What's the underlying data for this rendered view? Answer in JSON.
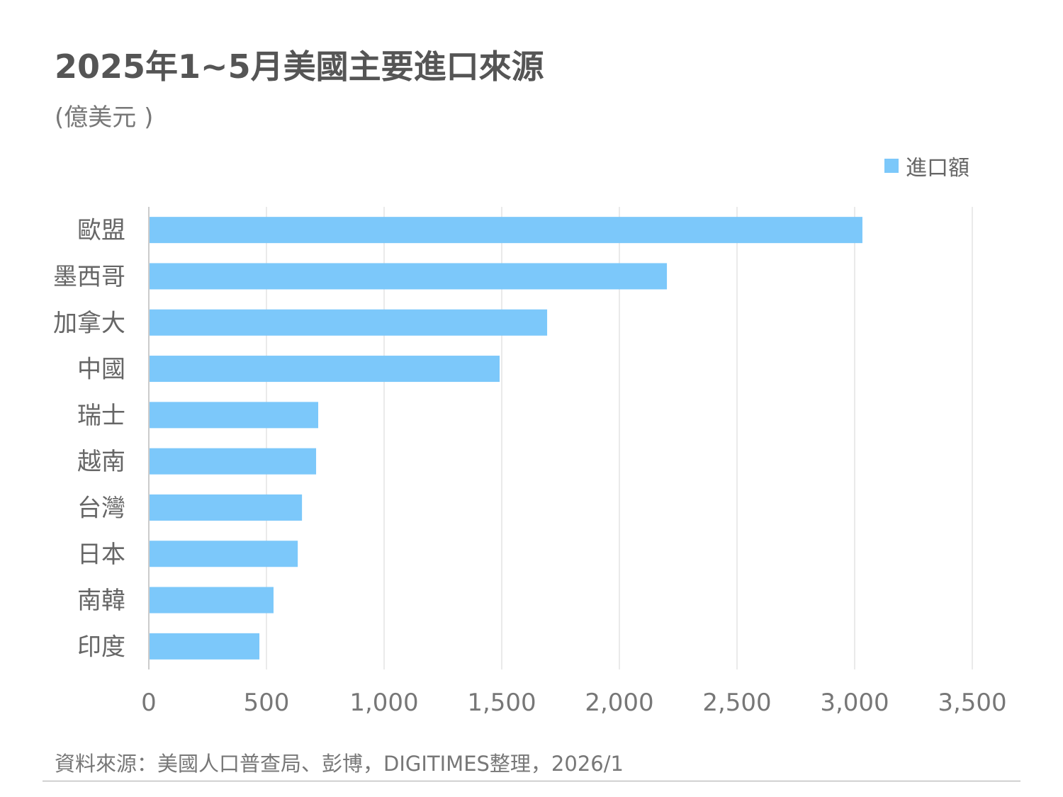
{
  "chart_data": {
    "type": "bar",
    "orientation": "horizontal",
    "title": "2025年1~5月美國主要進口來源",
    "subtitle": "(億美元 )",
    "categories": [
      "歐盟",
      "墨西哥",
      "加拿大",
      "中國",
      "瑞士",
      "越南",
      "台灣",
      "日本",
      "南韓",
      "印度"
    ],
    "series": [
      {
        "name": "進口額",
        "values": [
          3033,
          2202,
          1693,
          1491,
          720,
          711,
          651,
          633,
          530,
          470
        ],
        "color": "#7cc8fa"
      }
    ],
    "xlim": [
      0,
      3500
    ],
    "xticks": [
      0,
      500,
      1000,
      1500,
      2000,
      2500,
      3000,
      3500
    ],
    "xtick_labels": [
      "0",
      "500",
      "1,000",
      "1,500",
      "2,000",
      "2,500",
      "3,000",
      "3,500"
    ],
    "grid": true,
    "legend_position": "top-right",
    "source": "資料來源：美國人口普查局、彭博，DIGITIMES整理，2026/1"
  }
}
